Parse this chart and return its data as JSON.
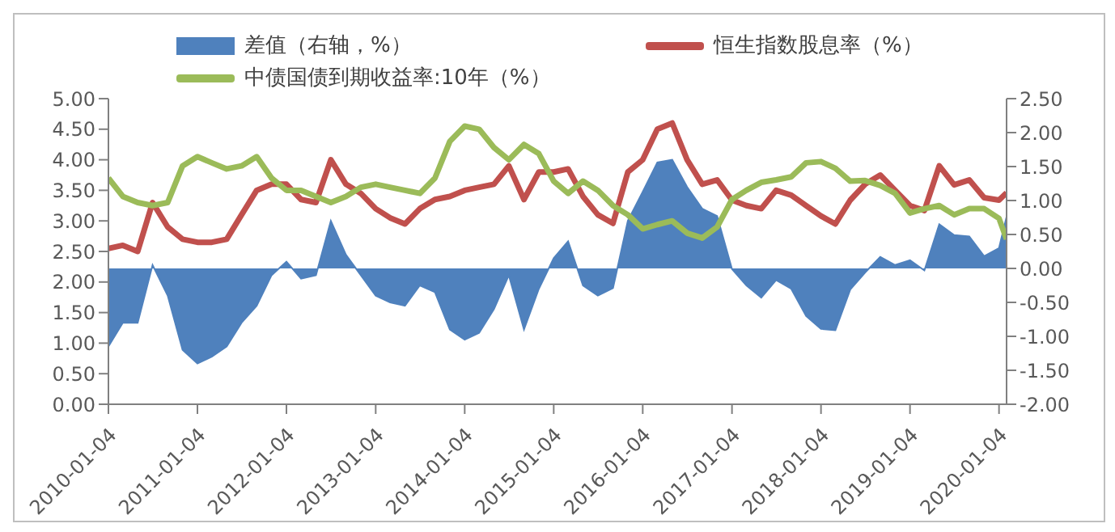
{
  "chart_data": {
    "type": "line",
    "x": [
      "2010-01-04",
      "2010-03-04",
      "2010-05-04",
      "2010-07-04",
      "2010-09-04",
      "2010-11-04",
      "2011-01-04",
      "2011-03-04",
      "2011-05-04",
      "2011-07-04",
      "2011-09-04",
      "2011-11-04",
      "2012-01-04",
      "2012-03-04",
      "2012-05-04",
      "2012-07-04",
      "2012-09-04",
      "2012-11-04",
      "2013-01-04",
      "2013-03-04",
      "2013-05-04",
      "2013-07-04",
      "2013-09-04",
      "2013-11-04",
      "2014-01-04",
      "2014-03-04",
      "2014-05-04",
      "2014-07-04",
      "2014-09-04",
      "2014-11-04",
      "2015-01-04",
      "2015-03-04",
      "2015-05-04",
      "2015-07-04",
      "2015-09-04",
      "2015-11-04",
      "2016-01-04",
      "2016-03-04",
      "2016-05-04",
      "2016-07-04",
      "2016-09-04",
      "2016-11-04",
      "2017-01-04",
      "2017-03-04",
      "2017-05-04",
      "2017-07-04",
      "2017-09-04",
      "2017-11-04",
      "2018-01-04",
      "2018-03-04",
      "2018-05-04",
      "2018-07-04",
      "2018-09-04",
      "2018-11-04",
      "2019-01-04",
      "2019-03-04",
      "2019-05-04",
      "2019-07-04",
      "2019-09-04",
      "2019-11-04",
      "2020-01-04",
      "2020-02-04"
    ],
    "series": [
      {
        "name": "差值（右轴，%）",
        "type": "area",
        "axis": "y2",
        "color": "#4f81bd",
        "values": [
          -1.15,
          -0.8,
          -0.8,
          0.05,
          -0.4,
          -1.2,
          -1.4,
          -1.3,
          -1.15,
          -0.8,
          -0.55,
          -0.1,
          0.1,
          -0.15,
          -0.1,
          0.7,
          0.2,
          -0.1,
          -0.4,
          -0.5,
          -0.55,
          -0.25,
          -0.35,
          -0.9,
          -1.05,
          -0.95,
          -0.6,
          -0.1,
          -0.9,
          -0.3,
          0.15,
          0.4,
          -0.25,
          -0.4,
          -0.29,
          0.7,
          1.13,
          1.56,
          1.6,
          1.2,
          0.88,
          0.77,
          -0.01,
          -0.25,
          -0.43,
          -0.17,
          -0.3,
          -0.7,
          -0.89,
          -0.91,
          -0.31,
          -0.06,
          0.17,
          0.05,
          0.12,
          -0.03,
          0.65,
          0.49,
          0.47,
          0.18,
          0.3,
          0.76
        ]
      },
      {
        "name": "恒生指数股息率（%）",
        "color": "#c0504d",
        "values": [
          2.55,
          2.6,
          2.5,
          3.3,
          2.9,
          2.7,
          2.65,
          2.65,
          2.7,
          3.1,
          3.5,
          3.6,
          3.6,
          3.35,
          3.3,
          4.0,
          3.6,
          3.45,
          3.2,
          3.05,
          2.95,
          3.2,
          3.35,
          3.4,
          3.5,
          3.55,
          3.6,
          3.9,
          3.35,
          3.8,
          3.8,
          3.85,
          3.4,
          3.1,
          2.96,
          3.8,
          4.0,
          4.5,
          4.6,
          4.0,
          3.6,
          3.67,
          3.34,
          3.25,
          3.2,
          3.5,
          3.42,
          3.25,
          3.08,
          2.95,
          3.34,
          3.6,
          3.75,
          3.5,
          3.25,
          3.17,
          3.9,
          3.59,
          3.67,
          3.38,
          3.34,
          3.46
        ]
      },
      {
        "name": "中债国债到期收益率:10年（%）",
        "color": "#9bbb59",
        "values": [
          3.7,
          3.4,
          3.3,
          3.25,
          3.3,
          3.9,
          4.05,
          3.95,
          3.85,
          3.9,
          4.05,
          3.7,
          3.5,
          3.5,
          3.4,
          3.3,
          3.4,
          3.55,
          3.6,
          3.55,
          3.5,
          3.45,
          3.7,
          4.3,
          4.55,
          4.5,
          4.2,
          4.0,
          4.25,
          4.1,
          3.65,
          3.45,
          3.65,
          3.5,
          3.25,
          3.1,
          2.87,
          2.94,
          3.0,
          2.8,
          2.72,
          2.9,
          3.35,
          3.5,
          3.63,
          3.67,
          3.72,
          3.95,
          3.97,
          3.86,
          3.65,
          3.66,
          3.58,
          3.45,
          3.13,
          3.2,
          3.25,
          3.1,
          3.2,
          3.2,
          3.04,
          2.7
        ]
      }
    ],
    "xlim": [
      "2010-01-04",
      "2020-02-04"
    ],
    "xticks": [
      "2010-01-04",
      "2011-01-04",
      "2012-01-04",
      "2013-01-04",
      "2014-01-04",
      "2015-01-04",
      "2016-01-04",
      "2017-01-04",
      "2018-01-04",
      "2019-01-04",
      "2020-01-04"
    ],
    "ylim": [
      0,
      5
    ],
    "yticks": [
      {
        "value": 0,
        "label": "0.00"
      },
      {
        "value": 0.5,
        "label": "0.50"
      },
      {
        "value": 1,
        "label": "1.00"
      },
      {
        "value": 1.5,
        "label": "1.50"
      },
      {
        "value": 2,
        "label": "2.00"
      },
      {
        "value": 2.5,
        "label": "2.50"
      },
      {
        "value": 3,
        "label": "3.00"
      },
      {
        "value": 3.5,
        "label": "3.50"
      },
      {
        "value": 4,
        "label": "4.00"
      },
      {
        "value": 4.5,
        "label": "4.50"
      },
      {
        "value": 5,
        "label": "5.00"
      }
    ],
    "y2lim": [
      -2,
      2.5
    ],
    "y2ticks": [
      {
        "value": -2,
        "label": "-2.00"
      },
      {
        "value": -1.5,
        "label": "-1.50"
      },
      {
        "value": -1,
        "label": "-1.00"
      },
      {
        "value": -0.5,
        "label": "-0.50"
      },
      {
        "value": 0,
        "label": "0.00"
      },
      {
        "value": 0.5,
        "label": "0.50"
      },
      {
        "value": 1,
        "label": "1.00"
      },
      {
        "value": 1.5,
        "label": "1.50"
      },
      {
        "value": 2,
        "label": "2.00"
      },
      {
        "value": 2.5,
        "label": "2.50"
      }
    ],
    "legend": "top",
    "grid": false,
    "marker": "none"
  }
}
